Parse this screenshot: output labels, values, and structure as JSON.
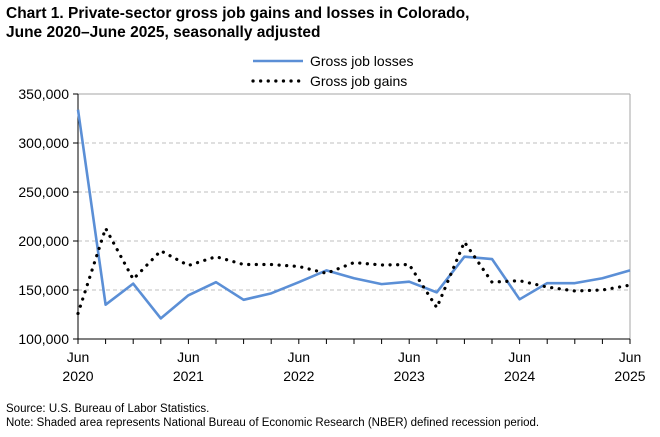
{
  "chart_data": {
    "type": "line",
    "title_line1": "Chart 1. Private-sector gross job gains and losses in Colorado,",
    "title_line2": "June 2020–June 2025, seasonally adjusted",
    "x": [
      "Jun 2020",
      "Sep 2020",
      "Dec 2020",
      "Mar 2021",
      "Jun 2021",
      "Sep 2021",
      "Dec 2021",
      "Mar 2022",
      "Jun 2022",
      "Sep 2022",
      "Dec 2022",
      "Mar 2023",
      "Jun 2023",
      "Sep 2023",
      "Dec 2023",
      "Mar 2024",
      "Jun 2024",
      "Sep 2024",
      "Dec 2024",
      "Mar 2025",
      "Jun 2025"
    ],
    "x_ticks": [
      {
        "month": "Jun",
        "year": "2020",
        "index": 0
      },
      {
        "month": "Jun",
        "year": "2021",
        "index": 4
      },
      {
        "month": "Jun",
        "year": "2022",
        "index": 8
      },
      {
        "month": "Jun",
        "year": "2023",
        "index": 12
      },
      {
        "month": "Jun",
        "year": "2024",
        "index": 16
      },
      {
        "month": "Jun",
        "year": "2025",
        "index": 20
      }
    ],
    "y_ticks": [
      "100,000",
      "150,000",
      "200,000",
      "250,000",
      "300,000",
      "350,000"
    ],
    "ylim": [
      100000,
      350000
    ],
    "grid": "horizontal dashed",
    "legend_placement": "top-center",
    "series": [
      {
        "name": "Gross job losses",
        "color": "#5b8fd6",
        "style": "solid",
        "values": [
          334000,
          135000,
          156500,
          121000,
          144600,
          158000,
          140000,
          146600,
          158000,
          170000,
          162000,
          156000,
          158500,
          147600,
          184000,
          181600,
          140500,
          157000,
          157000,
          162000,
          170000
        ]
      },
      {
        "name": "Gross job gains",
        "color": "#000000",
        "style": "dotted",
        "values": [
          126000,
          213000,
          161000,
          190000,
          175000,
          184000,
          176000,
          176000,
          174000,
          167000,
          178000,
          175500,
          176000,
          132000,
          199000,
          158000,
          159500,
          153000,
          149000,
          150000,
          155000
        ]
      }
    ]
  },
  "footer": {
    "source": "Source: U.S. Bureau of Labor Statistics.",
    "note": "Note: Shaded area represents National Bureau of Economic Research (NBER) defined recession period."
  }
}
